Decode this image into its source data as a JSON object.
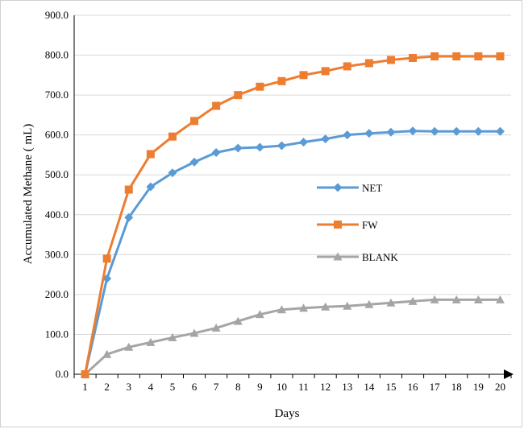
{
  "chart_data": {
    "type": "line",
    "title": "",
    "xlabel": "Days",
    "ylabel": "Accumulated Methane ( mL)",
    "x": [
      1,
      2,
      3,
      4,
      5,
      6,
      7,
      8,
      9,
      10,
      11,
      12,
      13,
      14,
      15,
      16,
      17,
      18,
      19,
      20
    ],
    "ylim": [
      0,
      900
    ],
    "yticks": [
      "0.0",
      "100.0",
      "200.0",
      "300.0",
      "400.0",
      "500.0",
      "600.0",
      "700.0",
      "800.0",
      "900.0"
    ],
    "grid": "horizontal",
    "legend_position": "center-right",
    "series": [
      {
        "name": "NET",
        "color": "#5b9bd5",
        "marker": "diamond",
        "values": [
          0,
          240,
          393,
          470,
          505,
          532,
          556,
          567,
          569,
          573,
          582,
          590,
          600,
          604,
          607,
          610,
          609,
          609,
          609,
          609
        ]
      },
      {
        "name": "FW",
        "color": "#ed7d31",
        "marker": "square",
        "values": [
          0,
          290,
          463,
          552,
          596,
          635,
          673,
          700,
          721,
          735,
          750,
          760,
          772,
          780,
          788,
          793,
          797,
          797,
          797,
          797
        ]
      },
      {
        "name": "BLANK",
        "color": "#a5a5a5",
        "marker": "triangle",
        "values": [
          0,
          50,
          68,
          80,
          92,
          103,
          116,
          133,
          150,
          162,
          166,
          169,
          171,
          175,
          179,
          183,
          187,
          187,
          187,
          187
        ]
      }
    ]
  }
}
